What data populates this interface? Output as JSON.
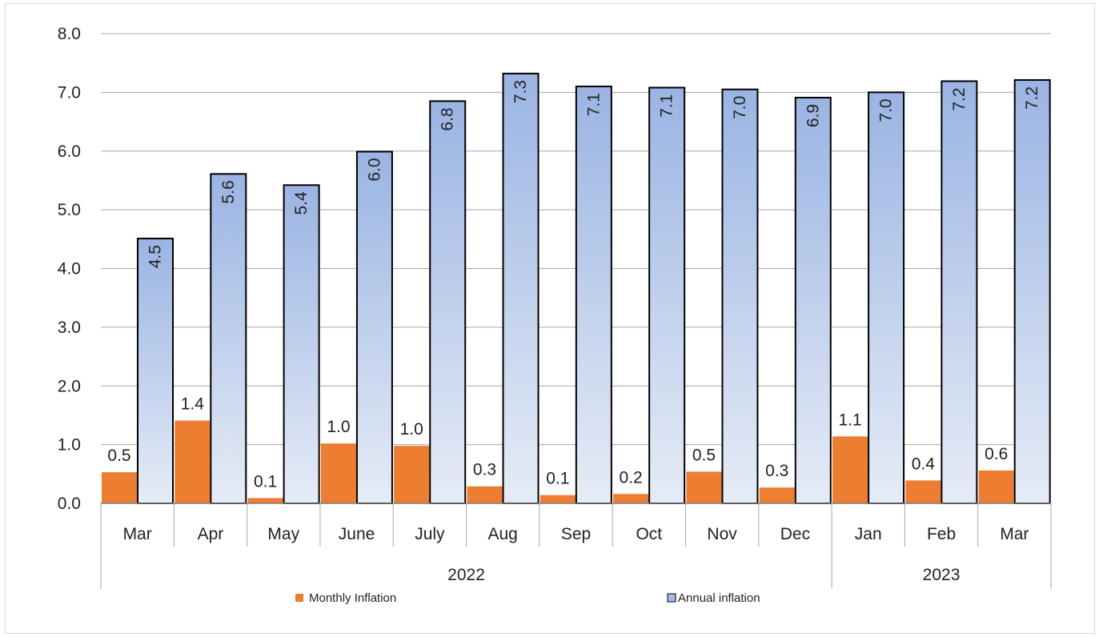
{
  "chart_data": {
    "type": "bar",
    "categories": [
      "Mar",
      "Apr",
      "May",
      "June",
      "July",
      "Aug",
      "Sep",
      "Oct",
      "Nov",
      "Dec",
      "Jan",
      "Feb",
      "Mar"
    ],
    "year_groups": [
      {
        "label": "2022",
        "span": 10
      },
      {
        "label": "2023",
        "span": 3
      }
    ],
    "series": [
      {
        "name": "Monthly Inflation",
        "color": "#ED7D31",
        "values": [
          0.53,
          1.41,
          0.09,
          1.02,
          0.98,
          0.29,
          0.14,
          0.16,
          0.54,
          0.27,
          1.14,
          0.39,
          0.56
        ],
        "labels": [
          "0.5",
          "1.4",
          "0.1",
          "1.0",
          "1.0",
          "0.3",
          "0.1",
          "0.2",
          "0.5",
          "0.3",
          "1.1",
          "0.4",
          "0.6"
        ]
      },
      {
        "name": "Annual inflation",
        "color": "#A3BBE6",
        "values": [
          4.51,
          5.61,
          5.42,
          5.99,
          6.85,
          7.32,
          7.1,
          7.08,
          7.05,
          6.91,
          7.0,
          7.19,
          7.21
        ],
        "labels": [
          "4.5",
          "5.6",
          "5.4",
          "6.0",
          "6.8",
          "7.3",
          "7.1",
          "7.1",
          "7.0",
          "6.9",
          "7.0",
          "7.2",
          "7.2"
        ]
      }
    ],
    "y_ticks": [
      "0.0",
      "1.0",
      "2.0",
      "3.0",
      "4.0",
      "5.0",
      "6.0",
      "7.0",
      "8.0"
    ],
    "ylim": [
      0,
      8
    ],
    "grid": true,
    "legend": "bottom"
  }
}
